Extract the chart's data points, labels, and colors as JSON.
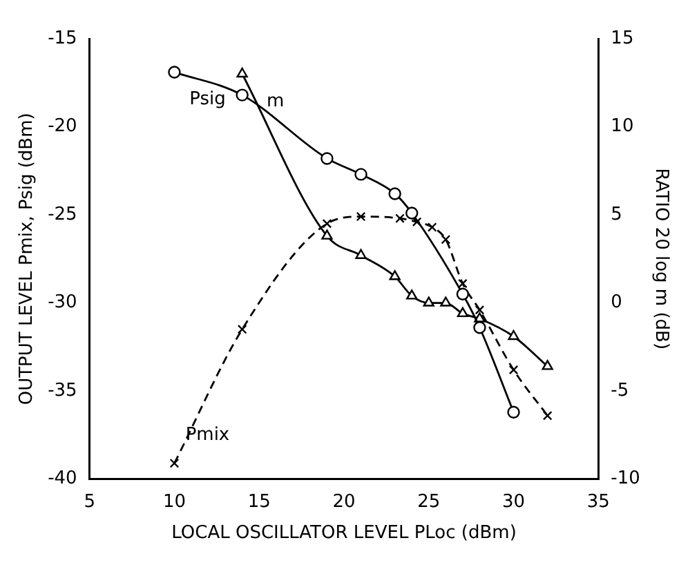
{
  "chart_data": {
    "type": "line",
    "xlabel": "LOCAL OSCILLATOR LEVEL PLoc (dBm)",
    "ylabel": "OUTPUT LEVEL Pmix, Psig (dBm)",
    "y2label": "RATIO 20 log m (dB)",
    "xlim": [
      5,
      35
    ],
    "xticks": [
      5,
      10,
      15,
      20,
      25,
      30,
      35
    ],
    "ylim": [
      -40,
      -15
    ],
    "yticks": [
      -40,
      -35,
      -30,
      -25,
      -20,
      -15
    ],
    "y2lim": [
      -10,
      15
    ],
    "y2ticks": [
      -10,
      -5,
      0,
      5,
      10,
      15
    ],
    "grid": false,
    "legend": false,
    "series": [
      {
        "name": "Psig",
        "color": "#000000",
        "marker": "circle",
        "line_style": "solid",
        "x": [
          10,
          14,
          19,
          21,
          23,
          24,
          27,
          28,
          30
        ],
        "values": [
          -16.9,
          -18.2,
          -21.8,
          -22.7,
          -23.8,
          -24.9,
          -29.5,
          -31.4,
          -36.2
        ]
      },
      {
        "name": "Pmix",
        "color": "#000000",
        "marker": "cross",
        "line_style": "dashed",
        "x": [
          10,
          14,
          19,
          21,
          23.3,
          24.3,
          25.2,
          26,
          27,
          28,
          30,
          32
        ],
        "values": [
          -39.1,
          -31.5,
          -25.5,
          -25.1,
          -25.2,
          -25.4,
          -25.7,
          -26.4,
          -28.9,
          -30.4,
          -33.8,
          -36.4
        ]
      },
      {
        "name": "m",
        "color": "#000000",
        "marker": "triangle",
        "line_style": "solid",
        "axis": "y2",
        "x": [
          14,
          19,
          21,
          23,
          24,
          25,
          26,
          27,
          28,
          30,
          32
        ],
        "values": [
          13.0,
          3.8,
          2.7,
          1.5,
          0.4,
          0,
          0,
          -0.6,
          -0.9,
          -1.9,
          -3.6
        ]
      }
    ]
  }
}
